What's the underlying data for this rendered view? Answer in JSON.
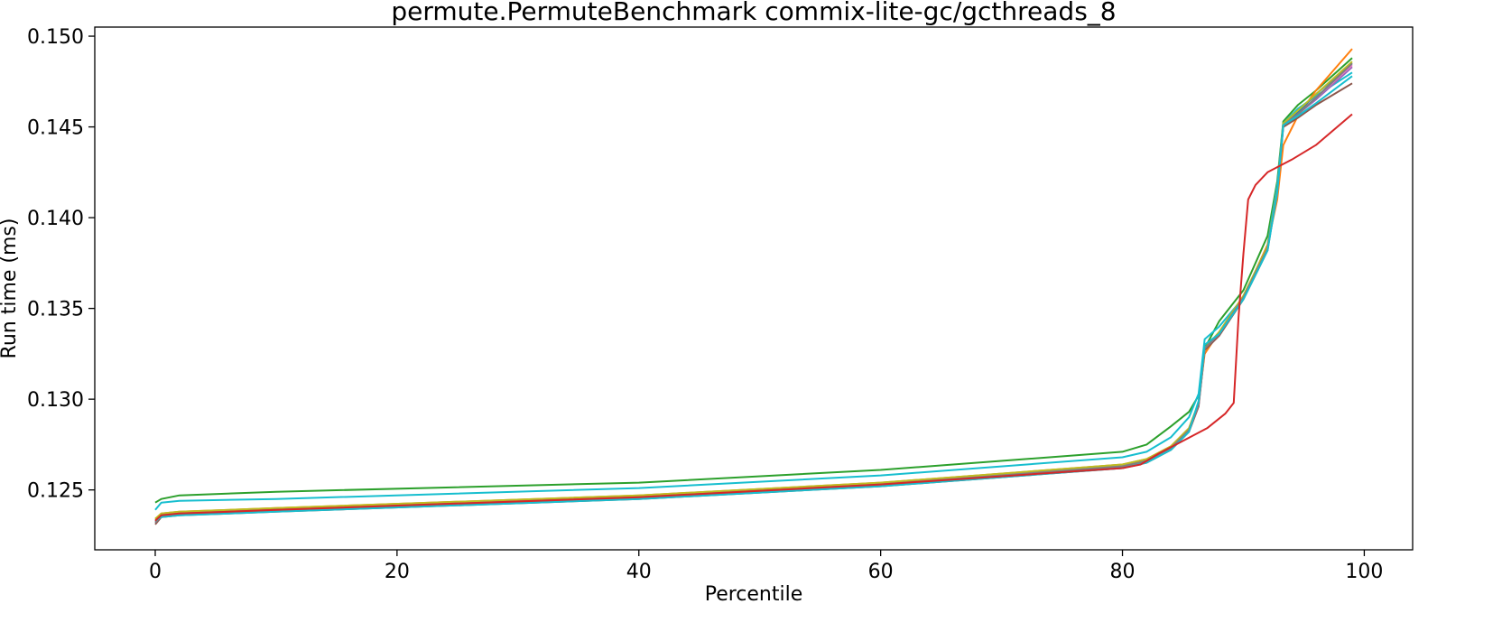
{
  "chart_data": {
    "type": "line",
    "title": "permute.PermuteBenchmark commix-lite-gc/gcthreads_8",
    "xlabel": "Percentile",
    "ylabel": "Run time (ms)",
    "xlim": [
      -5,
      104
    ],
    "ylim": [
      0.1217,
      0.1505
    ],
    "xticks": [
      0,
      20,
      40,
      60,
      80,
      100
    ],
    "xtick_labels": [
      "0",
      "20",
      "40",
      "60",
      "80",
      "100"
    ],
    "yticks": [
      0.125,
      0.13,
      0.135,
      0.14,
      0.145,
      0.15
    ],
    "ytick_labels": [
      "0.125",
      "0.130",
      "0.135",
      "0.140",
      "0.145",
      "0.150"
    ],
    "grid": false,
    "legend": "none",
    "series": [
      {
        "color": "#2ca02c",
        "x": [
          0,
          0.5,
          2,
          10,
          40,
          60,
          80,
          82,
          84,
          85.5,
          86.3,
          86.8,
          88,
          90,
          92,
          92.8,
          93.3,
          94.5,
          96,
          99
        ],
        "y": [
          0.1243,
          0.1245,
          0.1247,
          0.1249,
          0.1254,
          0.1261,
          0.1271,
          0.1275,
          0.1285,
          0.1293,
          0.1302,
          0.1328,
          0.1343,
          0.136,
          0.139,
          0.142,
          0.1453,
          0.1462,
          0.147,
          0.1488
        ]
      },
      {
        "color": "#17becf",
        "x": [
          0,
          0.5,
          2,
          10,
          40,
          60,
          80,
          82,
          84,
          85.5,
          86.3,
          86.8,
          88,
          90,
          92,
          92.8,
          93.3,
          94.5,
          96,
          99
        ],
        "y": [
          0.1239,
          0.1243,
          0.1244,
          0.1245,
          0.1251,
          0.1258,
          0.1268,
          0.1271,
          0.1279,
          0.129,
          0.1303,
          0.1333,
          0.134,
          0.1356,
          0.1385,
          0.1418,
          0.1452,
          0.146,
          0.1467,
          0.148
        ]
      },
      {
        "color": "#ff7f0e",
        "x": [
          0,
          0.5,
          2,
          10,
          40,
          60,
          80,
          82,
          84,
          85.5,
          86.3,
          86.8,
          88,
          90,
          92,
          92.8,
          93.3,
          94.5,
          96,
          99
        ],
        "y": [
          0.1234,
          0.1237,
          0.1238,
          0.124,
          0.1247,
          0.1254,
          0.1264,
          0.1267,
          0.1274,
          0.1284,
          0.1298,
          0.1325,
          0.1337,
          0.1356,
          0.1385,
          0.141,
          0.144,
          0.1456,
          0.147,
          0.1493
        ]
      },
      {
        "color": "#8c564b",
        "x": [
          0,
          0.5,
          2,
          10,
          40,
          60,
          80,
          82,
          84,
          85.5,
          86.3,
          86.8,
          88,
          90,
          92,
          92.8,
          93.3,
          94.5,
          96,
          99
        ],
        "y": [
          0.1231,
          0.1235,
          0.1236,
          0.1238,
          0.1245,
          0.1252,
          0.1262,
          0.1265,
          0.1272,
          0.1282,
          0.1296,
          0.1327,
          0.1335,
          0.1355,
          0.1382,
          0.1415,
          0.145,
          0.1455,
          0.1462,
          0.1474
        ]
      },
      {
        "color": "#9467bd",
        "x": [
          0,
          0.5,
          2,
          10,
          40,
          60,
          80,
          82,
          84,
          85.5,
          86.3,
          86.8,
          88,
          90,
          92,
          92.8,
          93.3,
          94.5,
          96,
          99
        ],
        "y": [
          0.1232,
          0.1236,
          0.1237,
          0.1239,
          0.1246,
          0.1253,
          0.1263,
          0.1266,
          0.1273,
          0.1283,
          0.1297,
          0.1328,
          0.1336,
          0.1356,
          0.1383,
          0.1414,
          0.1451,
          0.1457,
          0.1465,
          0.1483
        ]
      },
      {
        "color": "#1f77b4",
        "x": [
          0,
          0.5,
          2,
          10,
          40,
          60,
          80,
          82,
          84,
          85.5,
          86.3,
          86.8,
          88,
          90,
          92,
          92.8,
          93.3,
          94.5,
          96,
          99
        ],
        "y": [
          0.1233,
          0.1236,
          0.1237,
          0.1239,
          0.1246,
          0.1253,
          0.1263,
          0.1266,
          0.1273,
          0.1283,
          0.1298,
          0.1328,
          0.1336,
          0.1356,
          0.1383,
          0.1415,
          0.1451,
          0.1458,
          0.1468,
          0.1485
        ]
      },
      {
        "color": "#e377c2",
        "x": [
          0,
          0.5,
          2,
          10,
          40,
          60,
          80,
          82,
          84,
          85.5,
          86.3,
          86.8,
          88,
          90,
          92,
          92.8,
          93.3,
          94.5,
          96,
          99
        ],
        "y": [
          0.1233,
          0.1236,
          0.1237,
          0.1239,
          0.1246,
          0.1253,
          0.1263,
          0.1266,
          0.1273,
          0.1283,
          0.1297,
          0.1328,
          0.1336,
          0.1356,
          0.1383,
          0.1414,
          0.1451,
          0.1457,
          0.1466,
          0.1484
        ]
      },
      {
        "color": "#bcbd22",
        "x": [
          0,
          0.5,
          2,
          10,
          40,
          60,
          80,
          82,
          84,
          85.5,
          86.3,
          86.8,
          88,
          90,
          92,
          92.8,
          93.3,
          94.5,
          96,
          99
        ],
        "y": [
          0.1234,
          0.1237,
          0.1238,
          0.124,
          0.1247,
          0.1254,
          0.1264,
          0.1267,
          0.1274,
          0.1284,
          0.1298,
          0.1328,
          0.1337,
          0.1357,
          0.1384,
          0.1415,
          0.1452,
          0.1459,
          0.1468,
          0.1486
        ]
      },
      {
        "color": "#7f7f7f",
        "x": [
          0,
          0.5,
          2,
          10,
          40,
          60,
          80,
          82,
          84,
          85.5,
          86.3,
          86.8,
          88,
          90,
          92,
          92.8,
          93.3,
          94.5,
          96,
          99
        ],
        "y": [
          0.1232,
          0.1236,
          0.1237,
          0.1239,
          0.1246,
          0.1253,
          0.1263,
          0.1266,
          0.1273,
          0.1283,
          0.1297,
          0.1328,
          0.1336,
          0.1356,
          0.1383,
          0.1414,
          0.1451,
          0.1457,
          0.1466,
          0.1485
        ]
      },
      {
        "color": "#17becf",
        "x": [
          0,
          0.5,
          2,
          10,
          40,
          60,
          80,
          82,
          84,
          85.5,
          86.3,
          86.8,
          88,
          90,
          92,
          92.8,
          93.3,
          94.5,
          96,
          99
        ],
        "y": [
          0.1233,
          0.1235,
          0.1236,
          0.1238,
          0.1245,
          0.1252,
          0.1262,
          0.1265,
          0.1272,
          0.1282,
          0.1299,
          0.133,
          0.1336,
          0.1355,
          0.1382,
          0.1414,
          0.1451,
          0.1456,
          0.1463,
          0.1478
        ]
      },
      {
        "color": "#d62728",
        "x": [
          0,
          0.5,
          2,
          10,
          40,
          60,
          80,
          81.5,
          83,
          85,
          87,
          88.5,
          89.2,
          89.6,
          90.0,
          90.4,
          91.0,
          92.0,
          94,
          96,
          99
        ],
        "y": [
          0.1233,
          0.1236,
          0.1237,
          0.1239,
          0.1246,
          0.1253,
          0.1262,
          0.1264,
          0.127,
          0.1277,
          0.1284,
          0.1292,
          0.1298,
          0.1345,
          0.138,
          0.141,
          0.1418,
          0.1425,
          0.1432,
          0.144,
          0.1457
        ]
      }
    ]
  }
}
